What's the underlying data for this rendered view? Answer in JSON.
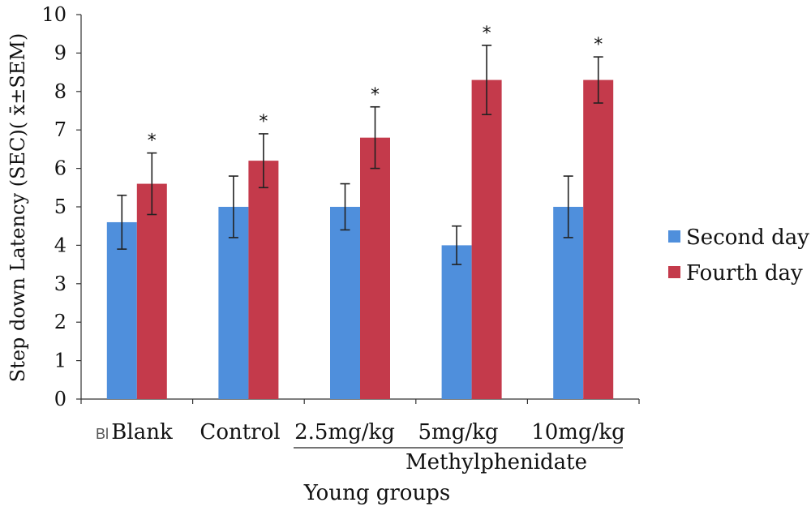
{
  "chart_data": {
    "type": "bar",
    "categories": [
      "Blank",
      "Control",
      "2.5mg/kg",
      "5mg/kg",
      "10mg/kg"
    ],
    "category_prefix_fragment": "Bl",
    "group_label": "Methylphenidate",
    "group_categories": [
      "2.5mg/kg",
      "5mg/kg",
      "10mg/kg"
    ],
    "series": [
      {
        "name": "Second day",
        "color": "#4f8fdc",
        "values": [
          4.6,
          5.0,
          5.0,
          4.0,
          5.0
        ],
        "error": [
          0.7,
          0.8,
          0.6,
          0.5,
          0.8
        ]
      },
      {
        "name": "Fourth day",
        "color": "#c43a4b",
        "values": [
          5.6,
          6.2,
          6.8,
          8.3,
          8.3
        ],
        "error": [
          0.8,
          0.7,
          0.8,
          0.9,
          0.6
        ]
      }
    ],
    "significance": [
      "*",
      "*",
      "*",
      "*",
      "*"
    ],
    "ylabel": "Step down Latency (SEC)( x̄±SEM)",
    "xlabel": "Young groups",
    "ylim": [
      0,
      10
    ],
    "yticks": [
      0,
      1,
      2,
      3,
      4,
      5,
      6,
      7,
      8,
      9,
      10
    ],
    "grid": false,
    "legend_position": "right"
  }
}
